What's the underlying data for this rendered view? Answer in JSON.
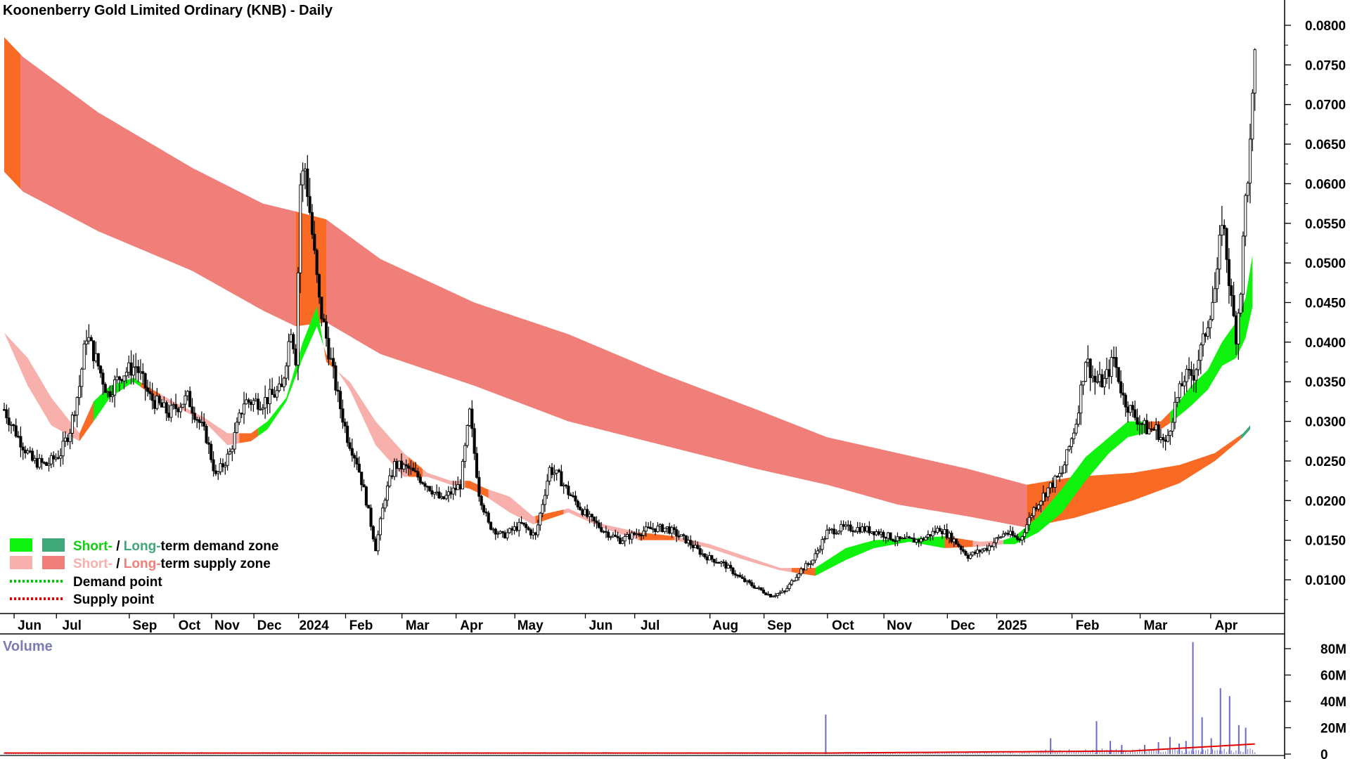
{
  "chart_data": {
    "type": "candlestick-with-zones",
    "title": "Koonenberry Gold Limited Ordinary (KNB) - Daily",
    "price_axis": {
      "range": [
        0.005,
        0.082
      ],
      "ticks": [
        "0.0100",
        "0.0150",
        "0.0200",
        "0.0250",
        "0.0300",
        "0.0350",
        "0.0400",
        "0.0450",
        "0.0500",
        "0.0550",
        "0.0600",
        "0.0650",
        "0.0700",
        "0.0750",
        "0.0800"
      ]
    },
    "x_labels": [
      "Jun",
      "Jul",
      "Sep",
      "Oct",
      "Nov",
      "Dec",
      "2024",
      "Feb",
      "Mar",
      "Apr",
      "May",
      "Jun",
      "Jul",
      "Aug",
      "Sep",
      "Oct",
      "Nov",
      "Dec",
      "2025",
      "Feb",
      "Mar",
      "Apr"
    ],
    "x_label_index": [
      6,
      24,
      55,
      74,
      90,
      108,
      127,
      147,
      171,
      194,
      219,
      249,
      270,
      302,
      325,
      352,
      376,
      403,
      424,
      456,
      485,
      515
    ],
    "n_bars": 530,
    "long_zone": {
      "name": "Long-term supply zone",
      "knots": [
        [
          0,
          0.0785,
          0.0615
        ],
        [
          8,
          0.076,
          0.059
        ],
        [
          40,
          0.069,
          0.054
        ],
        [
          80,
          0.062,
          0.049
        ],
        [
          110,
          0.0575,
          0.044
        ],
        [
          124,
          0.0565,
          0.042
        ],
        [
          137,
          0.0555,
          0.0425
        ],
        [
          160,
          0.0505,
          0.0385
        ],
        [
          200,
          0.045,
          0.0345
        ],
        [
          240,
          0.041,
          0.03
        ],
        [
          280,
          0.036,
          0.027
        ],
        [
          320,
          0.0315,
          0.024
        ],
        [
          350,
          0.028,
          0.022
        ],
        [
          380,
          0.026,
          0.0195
        ],
        [
          410,
          0.024,
          0.018
        ],
        [
          435,
          0.022,
          0.0166
        ],
        [
          455,
          0.023,
          0.0178
        ],
        [
          480,
          0.0235,
          0.02
        ],
        [
          500,
          0.0245,
          0.0222
        ],
        [
          515,
          0.026,
          0.025
        ],
        [
          527,
          0.0285,
          0.028
        ],
        [
          530,
          0.0295,
          0.029
        ]
      ],
      "segments": [
        [
          0,
          7,
          "supply-dark"
        ],
        [
          7,
          124,
          "supply-light"
        ],
        [
          124,
          137,
          "supply-dark"
        ],
        [
          137,
          435,
          "supply-light"
        ],
        [
          435,
          526,
          "supply-dark"
        ],
        [
          526,
          530,
          "demand-dark"
        ]
      ]
    },
    "short_zone": {
      "name": "Short-term demand / supply zone",
      "knots": [
        [
          0,
          0.0412,
          0.0412
        ],
        [
          10,
          0.038,
          0.0345
        ],
        [
          20,
          0.033,
          0.0295
        ],
        [
          32,
          0.0285,
          0.0275
        ],
        [
          38,
          0.0325,
          0.03
        ],
        [
          45,
          0.0345,
          0.033
        ],
        [
          55,
          0.0355,
          0.035
        ],
        [
          62,
          0.0342,
          0.0335
        ],
        [
          72,
          0.0325,
          0.032
        ],
        [
          85,
          0.0305,
          0.03
        ],
        [
          95,
          0.0285,
          0.027
        ],
        [
          105,
          0.0285,
          0.0275
        ],
        [
          112,
          0.03,
          0.029
        ],
        [
          120,
          0.033,
          0.0325
        ],
        [
          127,
          0.04,
          0.038
        ],
        [
          133,
          0.0445,
          0.042
        ],
        [
          137,
          0.0375,
          0.0385
        ],
        [
          147,
          0.035,
          0.034
        ],
        [
          158,
          0.03,
          0.027
        ],
        [
          170,
          0.026,
          0.023
        ],
        [
          180,
          0.0235,
          0.023
        ],
        [
          190,
          0.0225,
          0.022
        ],
        [
          198,
          0.0225,
          0.0215
        ],
        [
          205,
          0.0215,
          0.0205
        ],
        [
          215,
          0.0205,
          0.0185
        ],
        [
          225,
          0.018,
          0.017
        ],
        [
          240,
          0.019,
          0.0185
        ],
        [
          255,
          0.017,
          0.0165
        ],
        [
          270,
          0.016,
          0.015
        ],
        [
          285,
          0.0155,
          0.015
        ],
        [
          300,
          0.0145,
          0.014
        ],
        [
          315,
          0.013,
          0.0125
        ],
        [
          330,
          0.0115,
          0.0112
        ],
        [
          345,
          0.0115,
          0.0105
        ],
        [
          358,
          0.014,
          0.0125
        ],
        [
          370,
          0.015,
          0.014
        ],
        [
          385,
          0.0152,
          0.0148
        ],
        [
          400,
          0.0155,
          0.014
        ],
        [
          415,
          0.0148,
          0.0142
        ],
        [
          425,
          0.015,
          0.0145
        ],
        [
          430,
          0.0155,
          0.0145
        ],
        [
          440,
          0.018,
          0.016
        ],
        [
          450,
          0.0215,
          0.0185
        ],
        [
          460,
          0.0255,
          0.0225
        ],
        [
          470,
          0.028,
          0.026
        ],
        [
          478,
          0.03,
          0.028
        ],
        [
          485,
          0.03,
          0.0285
        ],
        [
          492,
          0.03,
          0.029
        ],
        [
          497,
          0.0315,
          0.03
        ],
        [
          505,
          0.0345,
          0.032
        ],
        [
          512,
          0.0365,
          0.034
        ],
        [
          518,
          0.04,
          0.037
        ],
        [
          524,
          0.0425,
          0.038
        ],
        [
          528,
          0.0455,
          0.0405
        ],
        [
          531,
          0.051,
          0.0445
        ]
      ],
      "segments": [
        [
          0,
          32,
          "supply-light"
        ],
        [
          32,
          38,
          "supply-dark"
        ],
        [
          38,
          48,
          "demand-light"
        ],
        [
          48,
          58,
          "demand-light"
        ],
        [
          58,
          66,
          "supply-dark"
        ],
        [
          66,
          100,
          "supply-light"
        ],
        [
          100,
          108,
          "supply-dark"
        ],
        [
          108,
          118,
          "demand-light"
        ],
        [
          118,
          126,
          "demand-light"
        ],
        [
          126,
          136,
          "demand-light"
        ],
        [
          136,
          142,
          "supply-dark"
        ],
        [
          142,
          172,
          "supply-light"
        ],
        [
          172,
          178,
          "supply-dark"
        ],
        [
          178,
          196,
          "supply-light"
        ],
        [
          196,
          206,
          "supply-dark"
        ],
        [
          206,
          226,
          "supply-light"
        ],
        [
          226,
          238,
          "supply-dark"
        ],
        [
          238,
          270,
          "supply-light"
        ],
        [
          270,
          285,
          "supply-dark"
        ],
        [
          285,
          335,
          "supply-light"
        ],
        [
          335,
          345,
          "supply-dark"
        ],
        [
          345,
          400,
          "demand-light"
        ],
        [
          400,
          412,
          "supply-dark"
        ],
        [
          412,
          425,
          "supply-light"
        ],
        [
          425,
          478,
          "demand-light"
        ],
        [
          478,
          486,
          "demand-light"
        ],
        [
          486,
          496,
          "supply-dark"
        ],
        [
          496,
          531,
          "demand-light"
        ]
      ]
    },
    "price_knots": [
      [
        0,
        0.0315
      ],
      [
        6,
        0.028
      ],
      [
        12,
        0.025
      ],
      [
        18,
        0.0245
      ],
      [
        24,
        0.026
      ],
      [
        28,
        0.029
      ],
      [
        32,
        0.0345
      ],
      [
        35,
        0.041
      ],
      [
        40,
        0.037
      ],
      [
        44,
        0.0335
      ],
      [
        50,
        0.036
      ],
      [
        56,
        0.037
      ],
      [
        62,
        0.033
      ],
      [
        70,
        0.031
      ],
      [
        78,
        0.033
      ],
      [
        86,
        0.028
      ],
      [
        90,
        0.023
      ],
      [
        96,
        0.026
      ],
      [
        102,
        0.0325
      ],
      [
        110,
        0.0325
      ],
      [
        118,
        0.034
      ],
      [
        122,
        0.042
      ],
      [
        124,
        0.038
      ],
      [
        126,
        0.06
      ],
      [
        128,
        0.062
      ],
      [
        130,
        0.0565
      ],
      [
        134,
        0.045
      ],
      [
        138,
        0.039
      ],
      [
        142,
        0.033
      ],
      [
        146,
        0.028
      ],
      [
        150,
        0.025
      ],
      [
        154,
        0.02
      ],
      [
        158,
        0.014
      ],
      [
        162,
        0.0205
      ],
      [
        166,
        0.0245
      ],
      [
        172,
        0.024
      ],
      [
        180,
        0.022
      ],
      [
        186,
        0.02
      ],
      [
        190,
        0.021
      ],
      [
        194,
        0.022
      ],
      [
        198,
        0.031
      ],
      [
        202,
        0.021
      ],
      [
        206,
        0.017
      ],
      [
        212,
        0.0155
      ],
      [
        220,
        0.017
      ],
      [
        226,
        0.0155
      ],
      [
        232,
        0.024
      ],
      [
        236,
        0.023
      ],
      [
        240,
        0.021
      ],
      [
        248,
        0.018
      ],
      [
        256,
        0.016
      ],
      [
        262,
        0.015
      ],
      [
        270,
        0.016
      ],
      [
        276,
        0.0165
      ],
      [
        282,
        0.0165
      ],
      [
        290,
        0.015
      ],
      [
        298,
        0.013
      ],
      [
        306,
        0.012
      ],
      [
        314,
        0.01
      ],
      [
        320,
        0.009
      ],
      [
        326,
        0.008
      ],
      [
        332,
        0.0085
      ],
      [
        338,
        0.011
      ],
      [
        344,
        0.0125
      ],
      [
        350,
        0.016
      ],
      [
        356,
        0.0165
      ],
      [
        364,
        0.0165
      ],
      [
        372,
        0.016
      ],
      [
        380,
        0.015
      ],
      [
        390,
        0.015
      ],
      [
        398,
        0.0165
      ],
      [
        404,
        0.015
      ],
      [
        410,
        0.013
      ],
      [
        418,
        0.014
      ],
      [
        426,
        0.016
      ],
      [
        432,
        0.015
      ],
      [
        438,
        0.019
      ],
      [
        444,
        0.0215
      ],
      [
        450,
        0.0235
      ],
      [
        456,
        0.03
      ],
      [
        460,
        0.038
      ],
      [
        464,
        0.035
      ],
      [
        468,
        0.035
      ],
      [
        472,
        0.038
      ],
      [
        476,
        0.033
      ],
      [
        480,
        0.031
      ],
      [
        486,
        0.029
      ],
      [
        490,
        0.029
      ],
      [
        494,
        0.027
      ],
      [
        498,
        0.032
      ],
      [
        502,
        0.0355
      ],
      [
        506,
        0.036
      ],
      [
        510,
        0.04
      ],
      [
        513,
        0.044
      ],
      [
        516,
        0.048
      ],
      [
        518,
        0.056
      ],
      [
        520,
        0.051
      ],
      [
        522,
        0.045
      ],
      [
        524,
        0.041
      ],
      [
        526,
        0.047
      ],
      [
        528,
        0.058
      ],
      [
        530,
        0.0645
      ],
      [
        532,
        0.075
      ]
    ],
    "volume": {
      "label": "Volume",
      "ticks": [
        "0",
        "20M",
        "40M",
        "60M",
        "80M"
      ],
      "range": [
        0,
        85
      ],
      "spikes": [
        [
          358,
          30
        ],
        [
          456,
          12
        ],
        [
          476,
          25
        ],
        [
          482,
          10
        ],
        [
          487,
          7
        ],
        [
          497,
          7
        ],
        [
          503,
          9
        ],
        [
          508,
          13
        ],
        [
          512,
          8
        ],
        [
          515,
          10
        ],
        [
          518,
          85
        ],
        [
          522,
          28
        ],
        [
          526,
          12
        ],
        [
          530,
          50
        ],
        [
          534,
          44
        ],
        [
          538,
          22
        ],
        [
          541,
          20
        ]
      ]
    },
    "legend": [
      {
        "swatches": [
          "demand-light",
          "demand-dark"
        ],
        "part1": "Short-",
        "part2": " / ",
        "part3": "Long-",
        "part4": "term demand zone"
      },
      {
        "swatches": [
          "supply-light",
          "supply-dark"
        ],
        "part1": "Short-",
        "part2": " / ",
        "part3": "Long-",
        "part4": "term supply zone"
      },
      {
        "dotted": "#00c800",
        "label": "Demand point"
      },
      {
        "dotted": "#e00000",
        "label": "Supply point"
      }
    ],
    "colors": {
      "supply-light": "#f7b0ac",
      "supply-dark": "#f07f79",
      "supply-orange": "#f96a24",
      "demand-light": "#0ef20e",
      "demand-dark": "#3fa87a",
      "volume_bar": "#6a6ac8",
      "volume_avg": "#e00000",
      "legend_light_text": "#10d010",
      "legend_dark_text": "#3fa87a",
      "legend_supply_light_text": "#f7b0ac",
      "legend_supply_dark_text": "#f07f79"
    }
  }
}
